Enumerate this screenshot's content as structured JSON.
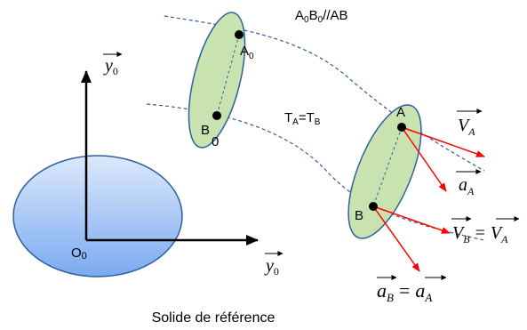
{
  "title": {
    "base1": "A",
    "sub1": "0",
    "base2": "B",
    "sub2": "0",
    "rest": "//AB"
  },
  "relation": {
    "t1": "T",
    "s1": "A",
    "eq": "=",
    "t2": "T",
    "s2": "B"
  },
  "origin": {
    "base": "O",
    "sub": "0"
  },
  "axis_y": {
    "base": "y",
    "sub": "0"
  },
  "axis_x": {
    "base": "y",
    "sub": "0"
  },
  "points": {
    "A0": {
      "base": "A",
      "sub": "0"
    },
    "B0": {
      "base": "B",
      "sub": "0"
    },
    "A": "A",
    "B": "B"
  },
  "vectors": {
    "VA": {
      "base": "V",
      "sub": "A"
    },
    "aA": {
      "base": "a",
      "sub": "A"
    },
    "VB_eq": {
      "lhs_base": "V",
      "lhs_sub": "B",
      "eq": "=",
      "rhs_base": "V",
      "rhs_sub": "A"
    },
    "aB_eq": {
      "lhs_base": "a",
      "lhs_sub": "B",
      "eq": "=",
      "rhs_base": "a",
      "rhs_sub": "A"
    }
  },
  "caption": "Solide de référence",
  "colors": {
    "reference_solid_top": "#dce9fb",
    "reference_solid_bottom": "#7aaaf0",
    "moving_solid": "#c9e3b0",
    "vector": "#ff0000",
    "trajectory": "#2f5f9e"
  }
}
